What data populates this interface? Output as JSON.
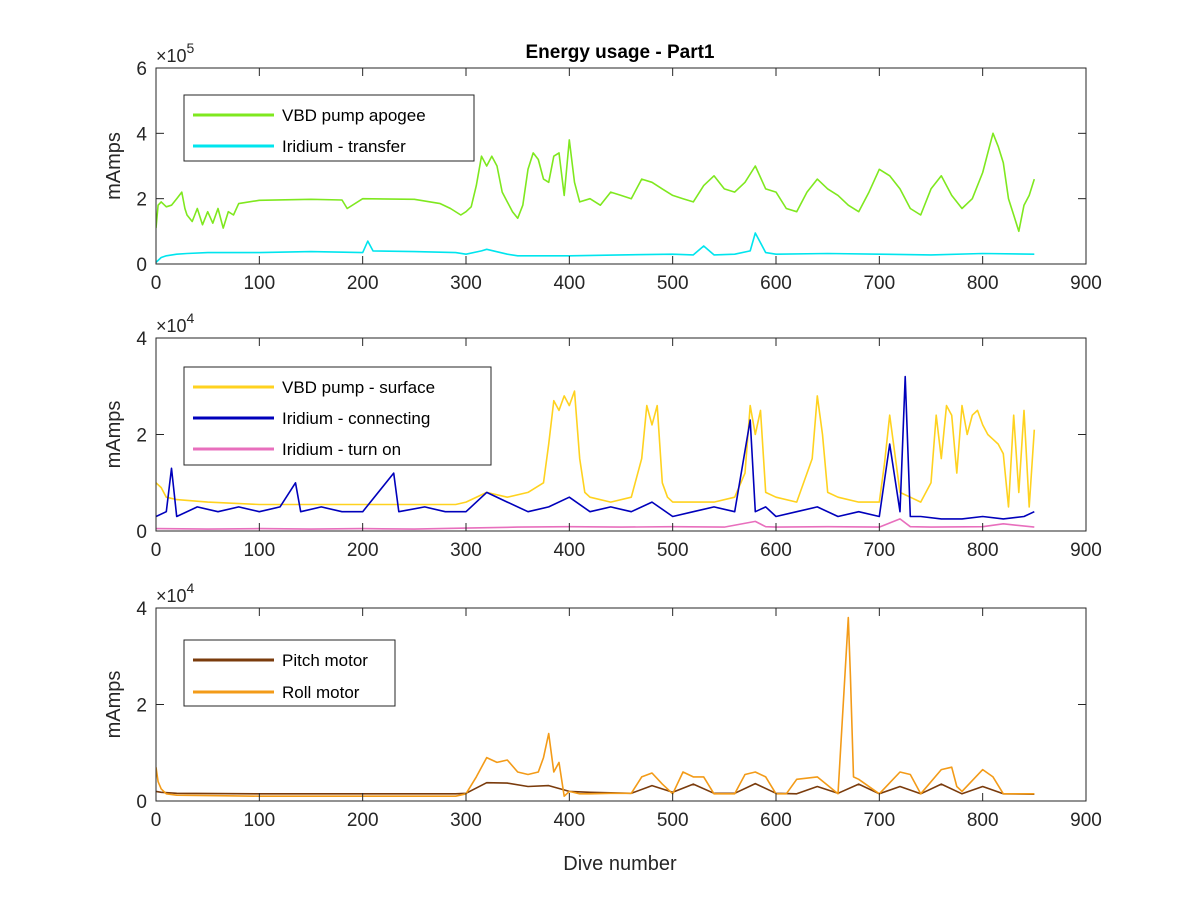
{
  "figure": {
    "title": "Energy usage - Part1",
    "xlabel": "Dive number"
  },
  "chart_data": [
    {
      "type": "line",
      "title": "Energy usage - Part1",
      "xlabel": "",
      "ylabel": "mAmps",
      "xlim": [
        0,
        900
      ],
      "ylim": [
        0,
        600000
      ],
      "xticks": [
        "0",
        "100",
        "200",
        "300",
        "400",
        "500",
        "600",
        "700",
        "800",
        "900"
      ],
      "yticks": [
        {
          "value": 0,
          "label": "0"
        },
        {
          "value": 200000,
          "label": "2"
        },
        {
          "value": 400000,
          "label": "4"
        },
        {
          "value": 600000,
          "label": "6"
        }
      ],
      "exponent": {
        "base": "×10",
        "power": "5"
      },
      "grid": false,
      "legend_position": "top-left",
      "series": [
        {
          "name": "VBD pump apogee",
          "color": "#7fe81f",
          "x": [
            0,
            2,
            5,
            10,
            15,
            20,
            25,
            28,
            30,
            35,
            40,
            45,
            50,
            55,
            60,
            65,
            70,
            75,
            80,
            100,
            150,
            180,
            185,
            200,
            250,
            275,
            285,
            295,
            300,
            305,
            310,
            315,
            320,
            325,
            330,
            335,
            340,
            345,
            350,
            355,
            360,
            365,
            370,
            375,
            380,
            385,
            390,
            395,
            400,
            405,
            410,
            420,
            430,
            440,
            450,
            460,
            470,
            480,
            490,
            500,
            510,
            520,
            530,
            540,
            550,
            560,
            570,
            580,
            590,
            600,
            610,
            620,
            630,
            640,
            650,
            660,
            670,
            680,
            690,
            700,
            710,
            720,
            730,
            740,
            750,
            760,
            770,
            780,
            790,
            800,
            805,
            810,
            815,
            820,
            825,
            830,
            835,
            840,
            845,
            850
          ],
          "y": [
            110000,
            180000,
            190000,
            175000,
            180000,
            200000,
            220000,
            170000,
            150000,
            130000,
            170000,
            120000,
            160000,
            125000,
            170000,
            110000,
            160000,
            150000,
            185000,
            195000,
            198000,
            196000,
            170000,
            200000,
            198000,
            185000,
            170000,
            150000,
            160000,
            175000,
            240000,
            330000,
            300000,
            330000,
            300000,
            220000,
            190000,
            160000,
            140000,
            180000,
            290000,
            340000,
            320000,
            260000,
            250000,
            330000,
            340000,
            210000,
            380000,
            250000,
            190000,
            200000,
            180000,
            220000,
            210000,
            200000,
            260000,
            250000,
            230000,
            210000,
            200000,
            190000,
            240000,
            270000,
            230000,
            220000,
            250000,
            300000,
            230000,
            220000,
            170000,
            160000,
            220000,
            260000,
            230000,
            210000,
            180000,
            160000,
            220000,
            290000,
            270000,
            230000,
            170000,
            150000,
            230000,
            270000,
            210000,
            170000,
            200000,
            280000,
            340000,
            400000,
            360000,
            310000,
            200000,
            150000,
            100000,
            180000,
            210000,
            260000
          ]
        },
        {
          "name": "Iridium - transfer",
          "color": "#00e5ee",
          "x": [
            0,
            5,
            10,
            20,
            30,
            50,
            100,
            150,
            200,
            205,
            210,
            250,
            290,
            300,
            315,
            320,
            340,
            350,
            400,
            450,
            500,
            520,
            530,
            540,
            560,
            575,
            580,
            590,
            600,
            650,
            700,
            750,
            800,
            850
          ],
          "y": [
            5000,
            20000,
            25000,
            30000,
            32000,
            35000,
            35000,
            38000,
            35000,
            70000,
            40000,
            38000,
            35000,
            30000,
            40000,
            45000,
            30000,
            25000,
            25000,
            28000,
            30000,
            28000,
            55000,
            28000,
            30000,
            40000,
            95000,
            35000,
            30000,
            32000,
            30000,
            28000,
            32000,
            30000
          ]
        }
      ]
    },
    {
      "type": "line",
      "title": "",
      "xlabel": "",
      "ylabel": "mAmps",
      "xlim": [
        0,
        900
      ],
      "ylim": [
        0,
        40000
      ],
      "xticks": [
        "0",
        "100",
        "200",
        "300",
        "400",
        "500",
        "600",
        "700",
        "800",
        "900"
      ],
      "yticks": [
        {
          "value": 0,
          "label": "0"
        },
        {
          "value": 20000,
          "label": "2"
        },
        {
          "value": 40000,
          "label": "4"
        }
      ],
      "exponent": {
        "base": "×10",
        "power": "4"
      },
      "grid": false,
      "legend_position": "top-left",
      "series": [
        {
          "name": "VBD pump - surface",
          "color": "#ffd21f",
          "x": [
            0,
            5,
            10,
            20,
            50,
            100,
            150,
            200,
            250,
            290,
            300,
            320,
            340,
            360,
            375,
            380,
            385,
            390,
            395,
            400,
            405,
            410,
            415,
            420,
            440,
            460,
            470,
            475,
            480,
            485,
            490,
            495,
            500,
            520,
            540,
            560,
            570,
            575,
            580,
            585,
            590,
            600,
            620,
            635,
            640,
            645,
            650,
            660,
            680,
            700,
            705,
            710,
            720,
            730,
            740,
            750,
            755,
            760,
            765,
            770,
            775,
            780,
            785,
            790,
            795,
            800,
            805,
            810,
            815,
            820,
            825,
            830,
            835,
            840,
            845,
            850
          ],
          "y": [
            10000,
            9000,
            7000,
            6500,
            6000,
            5500,
            5500,
            5500,
            5500,
            5500,
            6000,
            8000,
            7000,
            8000,
            10000,
            18000,
            27000,
            25000,
            28000,
            26000,
            29000,
            15000,
            8000,
            7000,
            6000,
            7000,
            15000,
            26000,
            22000,
            26000,
            10000,
            7000,
            6000,
            6000,
            6000,
            7000,
            12000,
            26000,
            20000,
            25000,
            8000,
            7000,
            6000,
            15000,
            28000,
            20000,
            8000,
            7000,
            6000,
            6000,
            14000,
            24000,
            8000,
            7000,
            6000,
            10000,
            24000,
            15000,
            26000,
            24000,
            12000,
            26000,
            20000,
            24000,
            25000,
            22000,
            20000,
            19000,
            18000,
            16000,
            5000,
            24000,
            8000,
            25000,
            5000,
            21000
          ]
        },
        {
          "name": "Iridium - connecting",
          "color": "#0000bb",
          "x": [
            0,
            10,
            15,
            20,
            40,
            60,
            80,
            100,
            120,
            135,
            140,
            160,
            180,
            200,
            230,
            235,
            260,
            280,
            300,
            320,
            340,
            360,
            380,
            400,
            420,
            440,
            460,
            480,
            500,
            520,
            540,
            560,
            575,
            580,
            590,
            600,
            620,
            640,
            660,
            680,
            700,
            710,
            720,
            725,
            730,
            740,
            760,
            780,
            800,
            820,
            840,
            850
          ],
          "y": [
            3000,
            4000,
            13000,
            3000,
            5000,
            4000,
            5000,
            4000,
            5000,
            10000,
            4000,
            5000,
            4000,
            4000,
            12000,
            4000,
            5000,
            4000,
            4000,
            8000,
            6000,
            4000,
            5000,
            7000,
            4000,
            5000,
            4000,
            6000,
            3000,
            4000,
            5000,
            4000,
            23000,
            4000,
            5000,
            3000,
            4000,
            5000,
            3000,
            4000,
            3000,
            18000,
            4000,
            32000,
            3000,
            3000,
            2500,
            2500,
            3000,
            2500,
            3000,
            4000
          ]
        },
        {
          "name": "Iridium - turn on",
          "color": "#e86fbd",
          "x": [
            0,
            50,
            100,
            150,
            200,
            250,
            300,
            350,
            400,
            450,
            500,
            550,
            580,
            590,
            600,
            650,
            700,
            720,
            730,
            750,
            800,
            820,
            850
          ],
          "y": [
            500,
            400,
            500,
            400,
            500,
            400,
            600,
            800,
            900,
            800,
            900,
            800,
            2000,
            900,
            800,
            900,
            800,
            2500,
            900,
            800,
            900,
            1500,
            800
          ]
        }
      ]
    },
    {
      "type": "line",
      "title": "",
      "xlabel": "Dive number",
      "ylabel": "mAmps",
      "xlim": [
        0,
        900
      ],
      "ylim": [
        0,
        40000
      ],
      "xticks": [
        "0",
        "100",
        "200",
        "300",
        "400",
        "500",
        "600",
        "700",
        "800",
        "900"
      ],
      "yticks": [
        {
          "value": 0,
          "label": "0"
        },
        {
          "value": 20000,
          "label": "2"
        },
        {
          "value": 40000,
          "label": "4"
        }
      ],
      "exponent": {
        "base": "×10",
        "power": "4"
      },
      "grid": false,
      "legend_position": "top-left",
      "series": [
        {
          "name": "Pitch motor",
          "color": "#7a3b0c",
          "x": [
            0,
            5,
            20,
            100,
            200,
            290,
            300,
            320,
            340,
            360,
            380,
            400,
            420,
            460,
            480,
            500,
            520,
            540,
            560,
            580,
            600,
            620,
            640,
            660,
            680,
            700,
            720,
            740,
            760,
            780,
            800,
            820,
            850
          ],
          "y": [
            2000,
            1800,
            1600,
            1500,
            1500,
            1500,
            1600,
            3800,
            3700,
            3000,
            3200,
            2000,
            1800,
            1600,
            3200,
            1800,
            3500,
            1600,
            1600,
            3600,
            1600,
            1500,
            3000,
            1600,
            3500,
            1500,
            3000,
            1500,
            3500,
            1500,
            3000,
            1500,
            1400
          ]
        },
        {
          "name": "Roll motor",
          "color": "#f39b18",
          "x": [
            0,
            2,
            5,
            10,
            20,
            100,
            200,
            290,
            300,
            310,
            320,
            330,
            340,
            350,
            360,
            370,
            375,
            380,
            385,
            390,
            395,
            400,
            410,
            420,
            440,
            460,
            470,
            480,
            490,
            500,
            510,
            520,
            530,
            540,
            560,
            570,
            580,
            590,
            600,
            610,
            620,
            640,
            660,
            670,
            672,
            675,
            680,
            700,
            720,
            730,
            740,
            760,
            770,
            775,
            780,
            800,
            810,
            820,
            830,
            850
          ],
          "y": [
            7000,
            4000,
            2500,
            1500,
            1200,
            1000,
            1000,
            1000,
            1500,
            5000,
            9000,
            8000,
            8500,
            6000,
            5500,
            6000,
            9000,
            14000,
            6000,
            8000,
            1000,
            2000,
            1500,
            1500,
            1600,
            1600,
            5000,
            5800,
            3500,
            1500,
            6000,
            5000,
            5000,
            1500,
            1500,
            5500,
            6000,
            5000,
            1500,
            1500,
            4500,
            5000,
            1500,
            38000,
            26000,
            5000,
            4500,
            1500,
            6000,
            5500,
            1500,
            6500,
            7000,
            3000,
            2000,
            6500,
            5000,
            1500,
            1500,
            1500
          ]
        }
      ]
    }
  ]
}
